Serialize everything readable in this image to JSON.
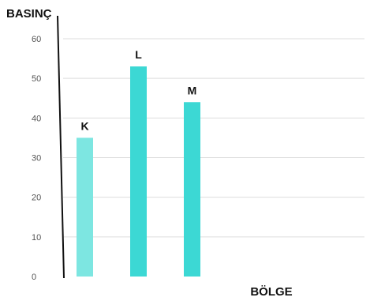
{
  "chart_data": {
    "type": "bar",
    "ylabel": "BASINÇ",
    "xlabel": "BÖLGE",
    "ylim": [
      0,
      60
    ],
    "yticks": [
      0,
      10,
      20,
      30,
      40,
      50,
      60
    ],
    "categories": [
      "K",
      "L",
      "M"
    ],
    "values": [
      35,
      53,
      44
    ],
    "bar_colors": [
      "#7de6e1",
      "#3cd8d4",
      "#3cd8d4"
    ],
    "grid": "horizontal",
    "legend": "none"
  }
}
